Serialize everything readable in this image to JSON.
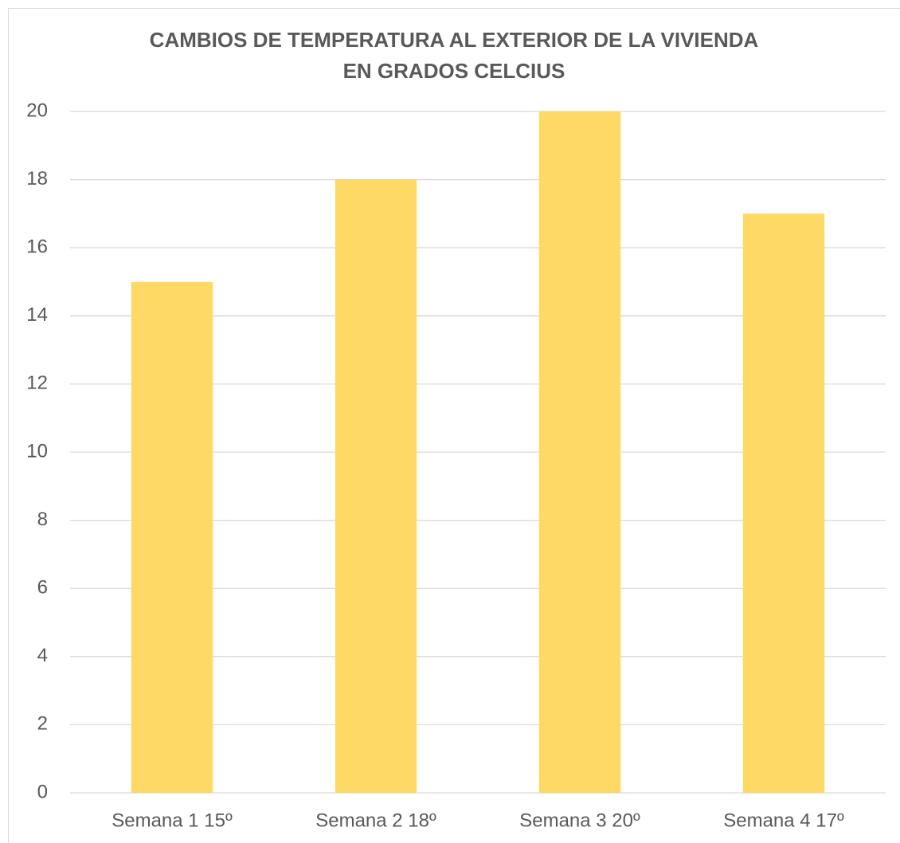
{
  "chart_data": {
    "type": "bar",
    "title": "CAMBIOS DE TEMPERATURA AL EXTERIOR DE LA VIVIENDA EN GRADOS CELCIUS",
    "categories": [
      "Semana 1 15º",
      "Semana 2 18º",
      "Semana 3 20º",
      "Semana 4 17º"
    ],
    "values": [
      15,
      18,
      20,
      17
    ],
    "color": "#fed966",
    "ylim": [
      0,
      20
    ],
    "yticks": [
      0,
      2,
      4,
      6,
      8,
      10,
      12,
      14,
      16,
      18,
      20
    ],
    "grid": true
  }
}
